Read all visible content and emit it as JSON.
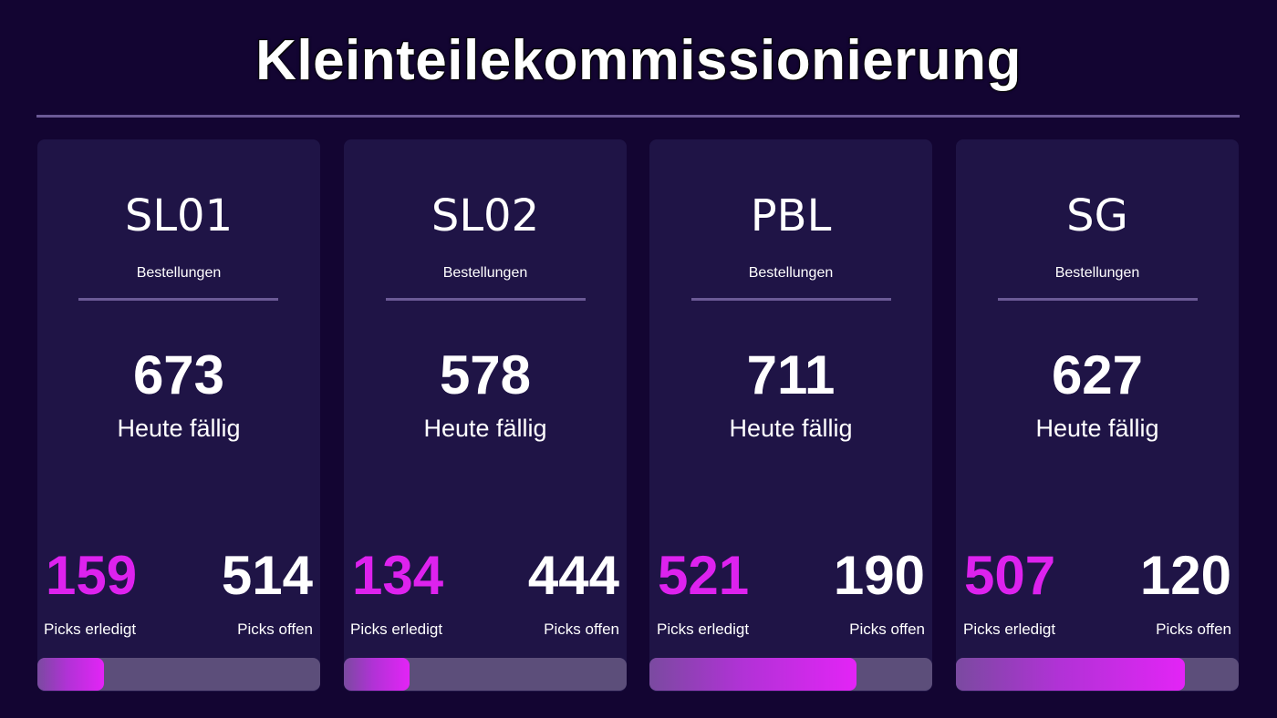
{
  "header": {
    "title": "Kleinteilekommissionierung"
  },
  "colors": {
    "background": "#130532",
    "card": "#1f1446",
    "divider": "#6b5a96",
    "accent_done": "#dd22ee",
    "bar_track": "#5c4e7a",
    "bar_fill_start": "#7a4aa0",
    "bar_fill_end": "#e324f6"
  },
  "cards": [
    {
      "name": "SL01",
      "subtitle": "Bestellungen",
      "due_today": "673",
      "due_label": "Heute fällig",
      "picks_done": "159",
      "picks_done_label": "Picks erledigt",
      "picks_open": "514",
      "picks_open_label": "Picks offen",
      "progress": 0.236
    },
    {
      "name": "SL02",
      "subtitle": "Bestellungen",
      "due_today": "578",
      "due_label": "Heute fällig",
      "picks_done": "134",
      "picks_done_label": "Picks erledigt",
      "picks_open": "444",
      "picks_open_label": "Picks offen",
      "progress": 0.232
    },
    {
      "name": "PBL",
      "subtitle": "Bestellungen",
      "due_today": "711",
      "due_label": "Heute fällig",
      "picks_done": "521",
      "picks_done_label": "Picks erledigt",
      "picks_open": "190",
      "picks_open_label": "Picks offen",
      "progress": 0.733
    },
    {
      "name": "SG",
      "subtitle": "Bestellungen",
      "due_today": "627",
      "due_label": "Heute fällig",
      "picks_done": "507",
      "picks_done_label": "Picks erledigt",
      "picks_open": "120",
      "picks_open_label": "Picks offen",
      "progress": 0.809
    }
  ]
}
